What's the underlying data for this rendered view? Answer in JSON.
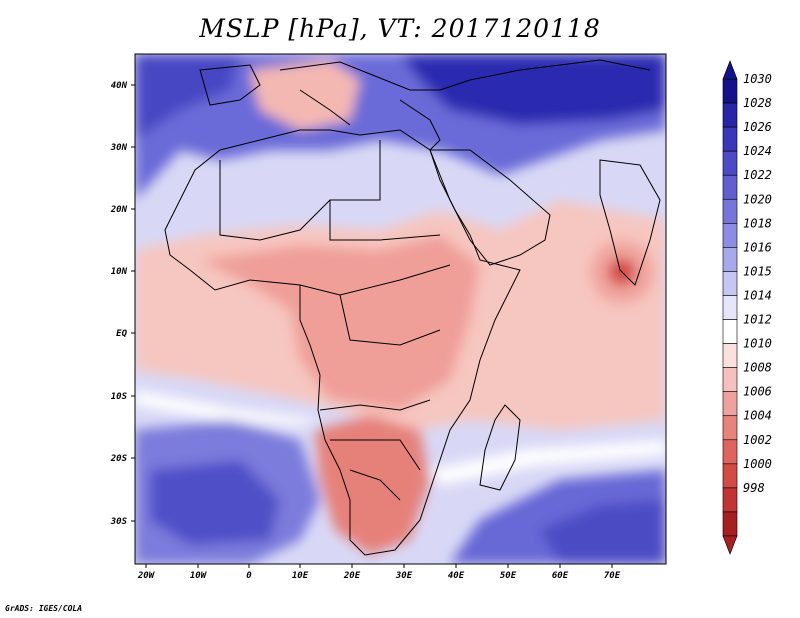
{
  "title": "MSLP [hPa], VT: 2017120118",
  "credit": "GrADS: IGES/COLA",
  "axes": {
    "lat_labels": [
      "40N",
      "30N",
      "20N",
      "10N",
      "EQ",
      "10S",
      "20S",
      "30S"
    ],
    "lon_labels": [
      "20W",
      "10W",
      "0",
      "10E",
      "20E",
      "30E",
      "40E",
      "50E",
      "60E",
      "70E"
    ]
  },
  "colorbar": {
    "levels": [
      "1030",
      "1028",
      "1026",
      "1024",
      "1022",
      "1020",
      "1018",
      "1016",
      "1015",
      "1014",
      "1012",
      "1010",
      "1008",
      "1006",
      "1004",
      "1002",
      "1000",
      "998"
    ],
    "colors": [
      "#12128c",
      "#2626a8",
      "#3838bb",
      "#4b4bc8",
      "#5f5fd2",
      "#7575db",
      "#8c8ce4",
      "#a8a8ec",
      "#c6c6f3",
      "#e6e6fa",
      "#ffffff",
      "#fbe0dd",
      "#f6c1bc",
      "#efa29c",
      "#e8837c",
      "#e0645e",
      "#d44a44",
      "#c43333",
      "#a81f1f"
    ],
    "arrows": {
      "top_color": "#12128c",
      "bottom_color": "#a81f1f"
    }
  }
}
